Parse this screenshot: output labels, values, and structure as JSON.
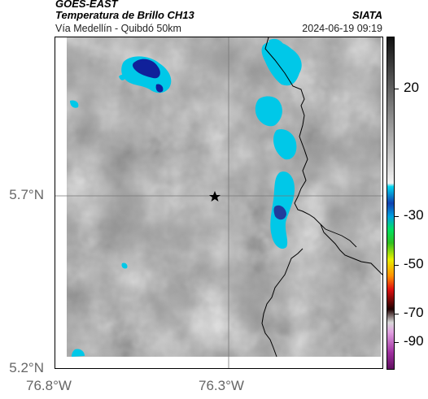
{
  "header": {
    "satellite": "GOES-EAST",
    "product": "Temperatura de Brillo CH13",
    "route": "Vía Medellín - Quibdó 50km",
    "organization": "SIATA",
    "timestamp": "2024-06-19 09:19"
  },
  "map": {
    "latitude_labels": [
      "5.7°N",
      "5.2°N"
    ],
    "longitude_labels": [
      "76.8°W",
      "76.3°W"
    ],
    "marker_icon": "star-icon",
    "colors": {
      "cold_cloud": "#00c8e8",
      "deep_cloud": "#10209a",
      "warm_surface": "#8a8a8a",
      "border_line": "#000000"
    }
  },
  "colorbar": {
    "tick_labels": [
      "20",
      "-30",
      "-50",
      "-70",
      "-90"
    ]
  }
}
